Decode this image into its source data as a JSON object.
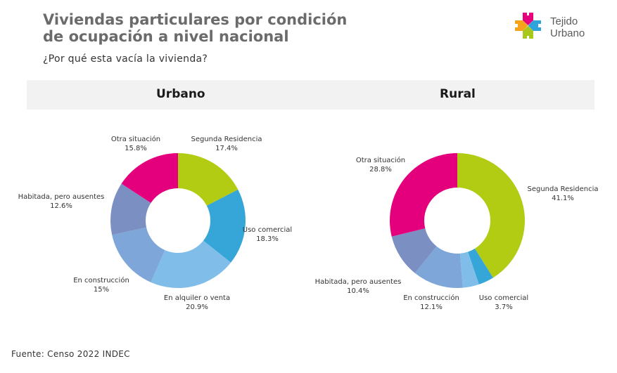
{
  "header": {
    "title": "Viviendas particulares por condición de ocupación a nivel nacional",
    "subtitle": "¿Por qué esta vacía la vivienda?"
  },
  "logo": {
    "line1": "Tejido",
    "line2": "Urbano",
    "colors": [
      "#e5007e",
      "#f7a21b",
      "#2fa4da",
      "#a8c91b"
    ]
  },
  "source": "Fuente: Censo 2022 INDEC",
  "chart_data": [
    {
      "type": "pie",
      "title": "Urbano",
      "donut": true,
      "categories": [
        "Segunda Residencia",
        "Uso comercial",
        "En alquiler o venta",
        "En construcción",
        "Habitada, pero ausentes",
        "Otra situación"
      ],
      "values": [
        17.4,
        18.3,
        20.9,
        15,
        12.6,
        15.8
      ],
      "labels": [
        "17.4%",
        "18.3%",
        "20.9%",
        "15%",
        "12.6%",
        "15.8%"
      ],
      "colors": [
        "#b2cb13",
        "#36a6d8",
        "#80bde8",
        "#7ea6d8",
        "#7b8fc2",
        "#e4007c"
      ],
      "unit": "%"
    },
    {
      "type": "pie",
      "title": "Rural",
      "donut": true,
      "categories": [
        "Segunda Residencia",
        "Uso comercial",
        "En alquiler o venta",
        "En construcción",
        "Habitada, pero ausentes",
        "Otra situación"
      ],
      "values": [
        41.1,
        3.7,
        3.9,
        12.1,
        10.4,
        28.8
      ],
      "labels": [
        "41.1%",
        "3.7%",
        "",
        "12.1%",
        "10.4%",
        "28.8%"
      ],
      "colors": [
        "#b2cb13",
        "#36a6d8",
        "#80bde8",
        "#7ea6d8",
        "#7b8fc2",
        "#e4007c"
      ],
      "unit": "%"
    }
  ]
}
